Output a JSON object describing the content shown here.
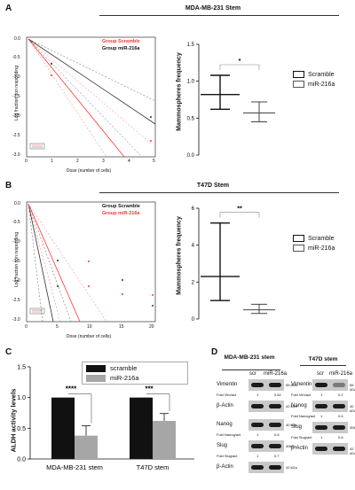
{
  "panels": {
    "A": {
      "label": "A",
      "section_title": "MDA-MB-231 Stem",
      "ldaplot": {
        "legend1": "Group Scramble",
        "legend2": "Group miR-216a",
        "ylabel": "Log fraction non responding",
        "xlabel": "Dose (number of cells)",
        "xticks": [
          "0",
          "1",
          "2",
          "3",
          "4",
          "5"
        ],
        "yticks": [
          "0.0",
          "-0.5",
          "-1.0",
          "-1.5",
          "-2.0",
          "-2.5",
          "-3.0"
        ],
        "colors": {
          "g1": "#ff3333",
          "g2": "#333333"
        }
      }
    },
    "B": {
      "label": "B",
      "section_title": "T47D Stem",
      "ldaplot": {
        "legend1": "Group Scramble",
        "legend2": "Group miR-216a",
        "ylabel": "Log fraction non responding",
        "xlabel": "Dose (number of cells)",
        "xticks": [
          "0",
          "5",
          "10",
          "15",
          "20"
        ],
        "yticks": [
          "0.0",
          "-0.5",
          "-1.0",
          "-1.5",
          "-2.0",
          "-2.5",
          "-3.0"
        ],
        "colors": {
          "g1": "#333333",
          "g2": "#ff3333"
        }
      }
    },
    "C": {
      "label": "C"
    },
    "D": {
      "label": "D",
      "left_title": "MDA-MB-231 stem",
      "right_title": "T47D stem",
      "lanes": [
        "scr",
        "miR-216a"
      ],
      "left_rows": [
        {
          "name": "Vimentin",
          "kda": "55 kDa",
          "fold_label": "Fold Vim/act",
          "fold": [
            "1",
            "0.62"
          ]
        },
        {
          "name": "β-Actin",
          "kda": "42 kDa"
        },
        {
          "name": "Nanog",
          "kda": "40 kDa",
          "fold_label": "Fold Nanog/act",
          "fold": [
            "1",
            "0.8"
          ]
        },
        {
          "name": "Slug",
          "kda": "30kDa",
          "fold_label": "Fold Slug/act",
          "fold": [
            "1",
            "0.7"
          ]
        },
        {
          "name": "β-Actin",
          "kda": "42 kDa"
        }
      ],
      "right_rows": [
        {
          "name": "Vimentin",
          "kda": "55 kDa",
          "fold_label": "Fold Vim/act",
          "fold": [
            "1",
            "0.2"
          ]
        },
        {
          "name": "Nanog",
          "kda": "40 kDa",
          "fold_label": "Fold Nanog/act",
          "fold": [
            "1",
            "0.6"
          ]
        },
        {
          "name": "Slug",
          "kda": "30kDa",
          "fold_label": "Fold Slug/act",
          "fold": [
            "1",
            "0.6"
          ]
        },
        {
          "name": "β-Actin",
          "kda": "42 kDa"
        }
      ]
    }
  },
  "chart_data": [
    {
      "type": "box",
      "panel": "A",
      "ylabel": "Mammospheres frequency",
      "ylim": [
        0.0,
        1.5
      ],
      "yticks": [
        0.0,
        0.5,
        1.0,
        1.5
      ],
      "series": [
        {
          "name": "Scramble",
          "low": 0.62,
          "mid": 0.82,
          "high": 1.08
        },
        {
          "name": "miR-216a",
          "low": 0.45,
          "mid": 0.57,
          "high": 0.72
        }
      ],
      "significance": "*",
      "legend": [
        "Scramble",
        "miR-216a"
      ]
    },
    {
      "type": "box",
      "panel": "B",
      "ylabel": "Mammospheres frequency",
      "ylim": [
        0,
        6
      ],
      "yticks": [
        0,
        2,
        4,
        6
      ],
      "series": [
        {
          "name": "Scramble",
          "low": 1.0,
          "mid": 2.3,
          "high": 5.2
        },
        {
          "name": "miR-216a",
          "low": 0.3,
          "mid": 0.5,
          "high": 0.8
        }
      ],
      "significance": "**",
      "legend": [
        "Scramble",
        "miR-216a"
      ]
    },
    {
      "type": "bar",
      "panel": "C",
      "ylabel": "ALDH activity levels",
      "ylim": [
        0,
        1.5
      ],
      "yticks": [
        "0.0",
        "0.5",
        "1.0",
        "1.5"
      ],
      "categories": [
        "MDA-MB-231 stem",
        "T47D stem"
      ],
      "series": [
        {
          "name": "scramble",
          "values": [
            1.0,
            1.0
          ],
          "errors": [
            0.0,
            0.0
          ],
          "color": "#111111"
        },
        {
          "name": "miR-216a",
          "values": [
            0.38,
            0.62
          ],
          "errors": [
            0.16,
            0.12
          ],
          "color": "#a6a6a6"
        }
      ],
      "significance": [
        "****",
        "***"
      ],
      "legend": [
        "scramble",
        "miR-216a"
      ]
    }
  ]
}
